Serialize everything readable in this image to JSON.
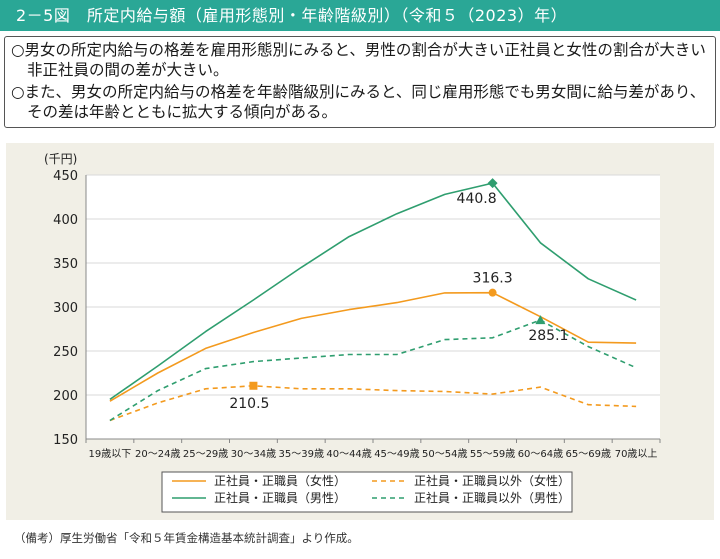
{
  "title": "2－5図　所定内給与額（雇用形態別・年齢階級別）（令和５（2023）年）",
  "summary": [
    "○男女の所定内給与の格差を雇用形態別にみると、男性の割合が大きい正社員と女性の割合が大きい非正社員の間の差が大きい。",
    "○また、男女の所定内給与の格差を年齢階級別にみると、同じ雇用形態でも男女間に給与差があり、その差は年齢とともに拡大する傾向がある。"
  ],
  "source": "（備考）厚生労働省「令和５年賃金構造基本統計調査」より作成。",
  "chart_data": {
    "type": "line",
    "unit_label": "(千円)",
    "ylim": [
      150,
      450
    ],
    "yticks": [
      150,
      200,
      250,
      300,
      350,
      400,
      450
    ],
    "grid": true,
    "legend_position": "bottom",
    "categories": [
      "19歳以下",
      "20～24歳",
      "25～29歳",
      "30～34歳",
      "35～39歳",
      "40～44歳",
      "45～49歳",
      "50～54歳",
      "55～59歳",
      "60～64歳",
      "65～69歳",
      "70歳以上"
    ],
    "series": [
      {
        "name": "正社員・正職員（女性）",
        "color": "#f39a1e",
        "dash": "solid",
        "values": [
          193,
          225,
          253,
          271,
          287,
          297,
          305,
          316,
          316.3,
          289,
          260,
          259
        ]
      },
      {
        "name": "正社員・正職員（男性）",
        "color": "#2f9e6f",
        "dash": "solid",
        "values": [
          195,
          233,
          272,
          308,
          345,
          380,
          406,
          428,
          440.8,
          373,
          332,
          308
        ]
      },
      {
        "name": "正社員・正職員以外（女性）",
        "color": "#f39a1e",
        "dash": "dashed",
        "values": [
          171,
          191,
          207,
          210.5,
          207,
          207,
          205,
          204,
          201,
          209,
          189,
          187
        ]
      },
      {
        "name": "正社員・正職員以外（男性）",
        "color": "#2f9e6f",
        "dash": "dashed",
        "values": [
          171,
          205,
          230,
          238,
          242,
          246,
          246,
          263,
          265,
          285.1,
          255,
          231
        ]
      }
    ],
    "annotations": [
      {
        "series": 1,
        "index": 8,
        "label": "440.8",
        "marker": "diamond"
      },
      {
        "series": 0,
        "index": 8,
        "label": "316.3",
        "marker": "circle"
      },
      {
        "series": 3,
        "index": 9,
        "label": "285.1",
        "marker": "triangle"
      },
      {
        "series": 2,
        "index": 3,
        "label": "210.5",
        "marker": "square"
      }
    ]
  }
}
